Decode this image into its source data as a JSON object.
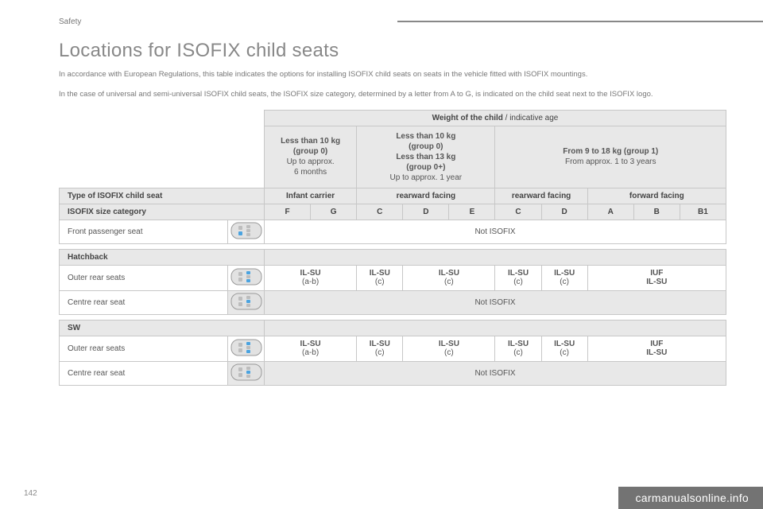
{
  "section": "Safety",
  "title": "Locations for ISOFIX child seats",
  "intro1": "In accordance with European Regulations, this table indicates the options for installing ISOFIX child seats on seats in the vehicle fitted with ISOFIX mountings.",
  "intro2": "In the case of universal and semi-universal ISOFIX child seats, the ISOFIX size category, determined by a letter from A to G, is indicated on the child seat next to the ISOFIX logo.",
  "weight_header": "Weight of the child",
  "weight_header_suffix": " / indicative age",
  "wg1_l1": "Less than 10 kg",
  "wg1_l2": "(group 0)",
  "wg1_l3": "Up to approx.",
  "wg1_l4": "6 months",
  "wg2_l1": "Less than 10 kg",
  "wg2_l2": "(group 0)",
  "wg2_l3": "Less than 13 kg",
  "wg2_l4": "(group 0+)",
  "wg2_l5": "Up to approx. 1 year",
  "wg3_l1": "From 9 to 18 kg (group 1)",
  "wg3_l2": "From approx. 1 to 3 years",
  "row_type_label": "Type of ISOFIX child seat",
  "type_vals": [
    "Infant carrier",
    "rearward facing",
    "rearward facing",
    "forward facing"
  ],
  "row_size_label": "ISOFIX size category",
  "size_vals": [
    "F",
    "G",
    "C",
    "D",
    "E",
    "C",
    "D",
    "A",
    "B",
    "B1"
  ],
  "row_front_label": "Front passenger seat",
  "not_isofix": "Not ISOFIX",
  "hatchback_label": "Hatchback",
  "outer_label": "Outer rear seats",
  "centre_label": "Centre rear seat",
  "sw_label": "SW",
  "cell_ilsu": "IL-SU",
  "cell_ab": "(a-b)",
  "cell_c": "(c)",
  "cell_iuf": "IUF",
  "page_number": "142",
  "footer_brand": "carmanualsonline.info",
  "colors": {
    "page_bg": "#ffffff",
    "text": "#4a4a4a",
    "muted": "#777777",
    "cell_border": "#c7c7c7",
    "shaded_bg": "#e8e8e8",
    "rule": "#888888",
    "footer_bg": "rgba(0,0,0,0.55)",
    "footer_text": "#ffffff",
    "car_body": "#e2e2e2",
    "car_outline": "#9a9a9a",
    "seat_gray": "#bdbdbd",
    "seat_highlight": "#4aa3e0"
  }
}
